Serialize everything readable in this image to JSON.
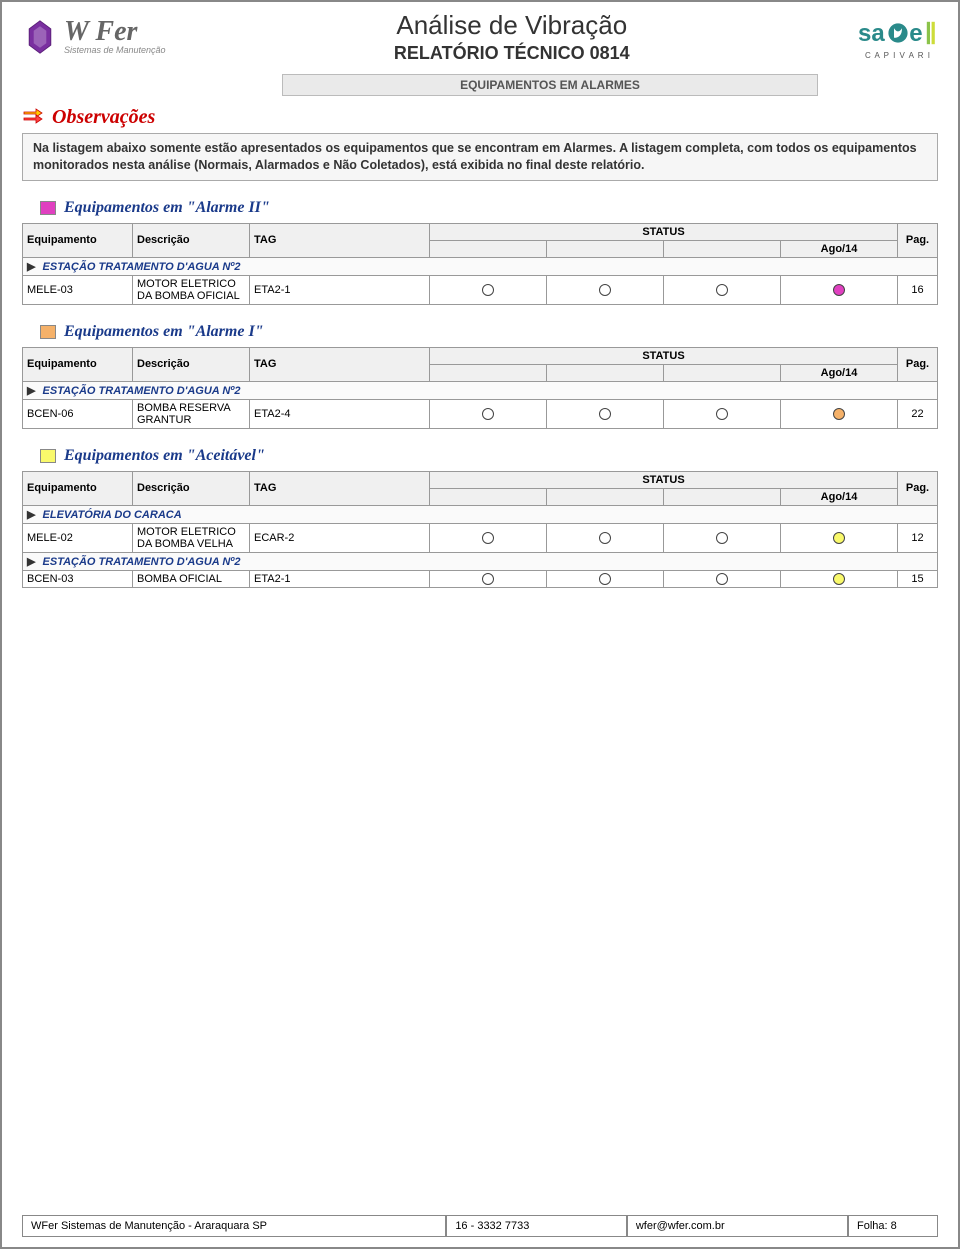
{
  "header": {
    "brand": "W Fer",
    "brand_tag": "Sistemas de Manutenção",
    "title": "Análise de Vibração",
    "subtitle": "RELATÓRIO TÉCNICO 0814",
    "right_logo_sub": "C A P I V A R I",
    "subheader": "EQUIPAMENTOS EM ALARMES"
  },
  "colors": {
    "alarme2": "#e040c0",
    "alarme1": "#f5b169",
    "aceitavel": "#f9f96b",
    "empty_circle": "#ffffff",
    "table_border": "#999999",
    "section_title": "#1a3a8a",
    "obs_title": "#c00000"
  },
  "observacoes": {
    "title": "Observações",
    "text": "Na listagem abaixo somente estão apresentados os equipamentos que se encontram em Alarmes.  A listagem completa, com todos os equipamentos monitorados nesta análise (Normais, Alarmados e Não Coletados), está exibida no final deste relatório."
  },
  "th": {
    "equipamento": "Equipamento",
    "descricao": "Descrição",
    "tag": "TAG",
    "status": "STATUS",
    "period": "Ago/14",
    "pag": "Pag."
  },
  "groups": [
    {
      "title": "Equipamentos em \"Alarme II\"",
      "swatch": "#e040c0",
      "subgroup": "ESTAÇÃO TRATAMENTO D'AGUA Nº2",
      "rows": [
        {
          "eq": "MELE-03",
          "desc": "MOTOR ELETRICO DA BOMBA OFICIAL",
          "tag": "ETA2-1",
          "status": [
            "#ffffff",
            "#ffffff",
            "#ffffff",
            "#e040c0"
          ],
          "pag": "16"
        }
      ]
    },
    {
      "title": "Equipamentos em \"Alarme I\"",
      "swatch": "#f5b169",
      "subgroup": "ESTAÇÃO TRATAMENTO D'AGUA Nº2",
      "rows": [
        {
          "eq": "BCEN-06",
          "desc": "BOMBA RESERVA GRANTUR",
          "tag": "ETA2-4",
          "status": [
            "#ffffff",
            "#ffffff",
            "#ffffff",
            "#f5b169"
          ],
          "pag": "22"
        }
      ]
    },
    {
      "title": "Equipamentos em \"Aceitável\"",
      "swatch": "#f9f96b",
      "subgroup": "ELEVATÓRIA DO CARACA",
      "rows": [
        {
          "eq": "MELE-02",
          "desc": "MOTOR ELETRICO DA BOMBA VELHA",
          "tag": "ECAR-2",
          "status": [
            "#ffffff",
            "#ffffff",
            "#ffffff",
            "#f9f96b"
          ],
          "pag": "12"
        }
      ],
      "subgroup2": "ESTAÇÃO TRATAMENTO D'AGUA Nº2",
      "rows2": [
        {
          "eq": "BCEN-03",
          "desc": "BOMBA OFICIAL",
          "tag": "ETA2-1",
          "status": [
            "#ffffff",
            "#ffffff",
            "#ffffff",
            "#f9f96b"
          ],
          "pag": "15"
        }
      ]
    }
  ],
  "footer": {
    "company": "WFer Sistemas de Manutenção  -  Araraquara SP",
    "phone": "16 -  3332 7733",
    "email": "wfer@wfer.com.br",
    "folha_label": "Folha:",
    "folha": "8"
  }
}
